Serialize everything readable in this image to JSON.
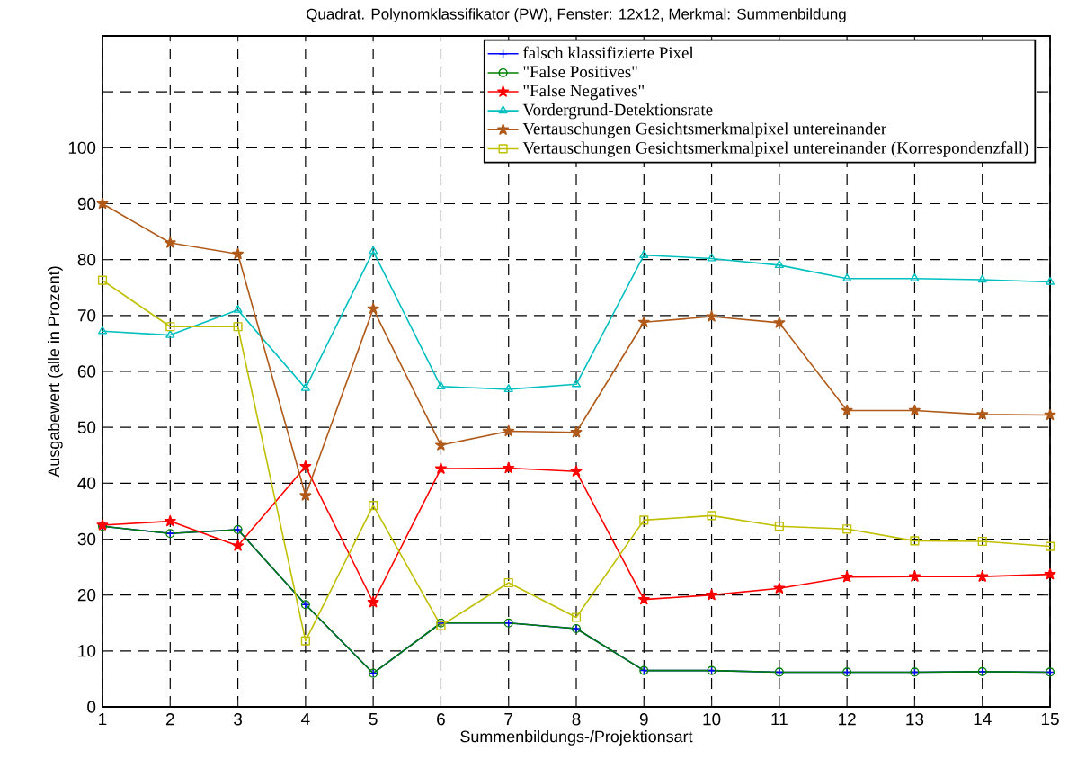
{
  "chart_data": {
    "type": "line",
    "title": "Quadrat. Polynomklassifikator (PW), Fenster: 12x12, Merkmal: Summenbildung",
    "xlabel": "Summenbildungs-/Projektionsart",
    "ylabel": "Ausgabewert (alle in Prozent)",
    "x": [
      1,
      2,
      3,
      4,
      5,
      6,
      7,
      8,
      9,
      10,
      11,
      12,
      13,
      14,
      15
    ],
    "xlim": [
      1,
      15
    ],
    "xticks": [
      1,
      2,
      3,
      4,
      5,
      6,
      7,
      8,
      9,
      10,
      11,
      12,
      13,
      14,
      15
    ],
    "ylim": [
      0,
      120
    ],
    "yticks": [
      0,
      10,
      20,
      30,
      40,
      50,
      60,
      70,
      80,
      90,
      100,
      {
        "value": 110,
        "label": null
      },
      {
        "value": 120,
        "label": null
      }
    ],
    "grid": true,
    "legend": "top right",
    "line_style": "solid",
    "series": [
      {
        "name": "falsch klassifizierte Pixel",
        "color": "#0000ff",
        "marker": "cross",
        "values": [
          32.3,
          31,
          31.7,
          18.3,
          6,
          15,
          15,
          14,
          6.5,
          6.5,
          6.2,
          6.2,
          6.2,
          6.3,
          6.2
        ]
      },
      {
        "name": "\"False Positives\"",
        "color": "#008000",
        "marker": "circle",
        "values": [
          32.3,
          31,
          31.7,
          18.3,
          6,
          15,
          15,
          14,
          6.5,
          6.5,
          6.2,
          6.2,
          6.2,
          6.3,
          6.2
        ]
      },
      {
        "name": "\"False Negatives\"",
        "color": "#ff0000",
        "marker": "star",
        "values": [
          32.5,
          33.2,
          28.8,
          43,
          18.7,
          42.6,
          42.7,
          42.1,
          19.2,
          20,
          21.2,
          23.2,
          23.3,
          23.3,
          23.7
        ]
      },
      {
        "name": "Vordergrund-Detektionsrate",
        "color": "#00bfbf",
        "marker": "triangle",
        "values": [
          67.2,
          66.5,
          71,
          57,
          81.5,
          57.3,
          56.8,
          57.7,
          80.8,
          80.2,
          79,
          76.6,
          76.6,
          76.4,
          76
        ]
      },
      {
        "name": "Vertauschungen Gesichtsmerkmalpixel untereinander",
        "color": "#b05a1a",
        "marker": "star",
        "values": [
          90,
          83,
          81,
          37.8,
          71.2,
          46.8,
          49.3,
          49.1,
          68.8,
          69.8,
          68.7,
          53,
          53,
          52.3,
          52.2
        ]
      },
      {
        "name": "Vertauschungen Gesichtsmerkmalpixel untereinander (Korrespondenzfall)",
        "color": "#bfbf00",
        "marker": "square",
        "values": [
          76.3,
          68,
          68,
          11.8,
          36,
          14.5,
          22.2,
          16,
          33.4,
          34.2,
          32.3,
          31.8,
          29.7,
          29.6,
          28.7
        ]
      }
    ]
  }
}
